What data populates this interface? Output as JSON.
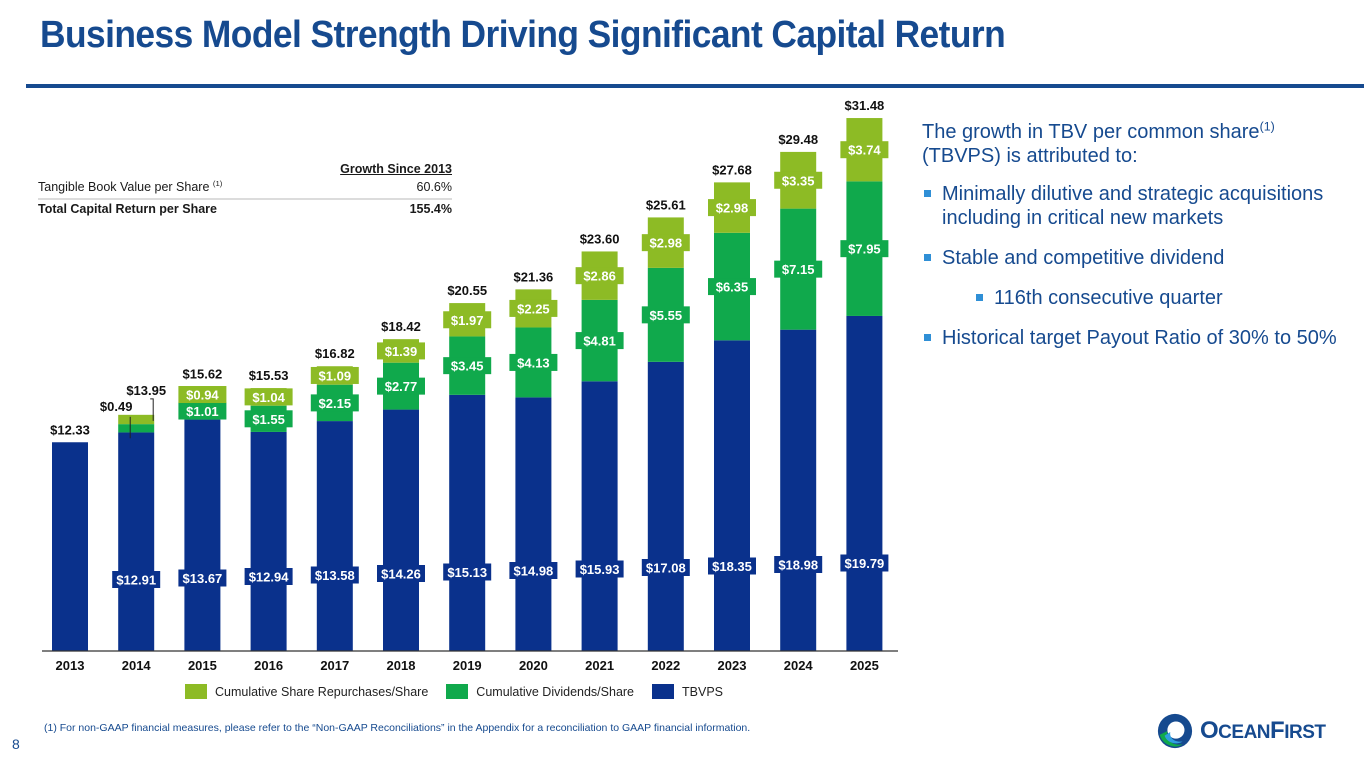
{
  "page": {
    "title": "Business Model Strength Driving Significant Capital Return",
    "page_number": "8",
    "footnote": "(1)  For non-GAAP financial measures, please refer to the “Non-GAAP Reconciliations” in the Appendix for a reconciliation to GAAP financial information.",
    "logo": {
      "name": "OceanFirst",
      "big_o": "O",
      "part1": "CEAN",
      "big_f": "F",
      "part2": "IRST"
    }
  },
  "colors": {
    "title": "#164a8f",
    "tbvps": "#0a318c",
    "dividends": "#10a94c",
    "repurchases": "#8dbb25",
    "bullet": "#2f8fd6"
  },
  "growth_table": {
    "header": "Growth Since 2013",
    "rows": [
      {
        "label": "Tangible Book Value per Share",
        "sup": "(1)",
        "value": "60.6%"
      },
      {
        "label": "Total Capital Return per Share",
        "sup": "",
        "value": "155.4%"
      }
    ]
  },
  "side_panel": {
    "intro": "The growth in TBV per common share",
    "intro_sup": "(1)",
    "intro_cont": " (TBVPS) is attributed to:",
    "bullets": [
      {
        "text": "Minimally dilutive and strategic acquisitions including in critical new markets",
        "level": 1
      },
      {
        "text": "Stable and competitive dividend",
        "level": 1
      },
      {
        "text": "116th consecutive quarter",
        "level": 2
      },
      {
        "text": "Historical target Payout Ratio of 30% to 50%",
        "level": 1
      }
    ]
  },
  "chart_data": {
    "type": "bar",
    "stacked": true,
    "title": "",
    "xlabel": "",
    "ylabel": "",
    "ylim": [
      0,
      32
    ],
    "grid": false,
    "legend_position": "bottom-center",
    "categories": [
      "2013",
      "2014",
      "2015",
      "2016",
      "2017",
      "2018",
      "2019",
      "2020",
      "2021",
      "2022",
      "2023",
      "2024",
      "2025"
    ],
    "series": [
      {
        "name": "TBVPS",
        "color": "#0a318c",
        "values": [
          12.33,
          12.91,
          13.67,
          12.94,
          13.58,
          14.26,
          15.13,
          14.98,
          15.93,
          17.08,
          18.35,
          18.98,
          19.79
        ],
        "labels": [
          "",
          "$12.91",
          "$13.67",
          "$12.94",
          "$13.58",
          "$14.26",
          "$15.13",
          "$14.98",
          "$15.93",
          "$17.08",
          "$18.35",
          "$18.98",
          "$19.79"
        ]
      },
      {
        "name": "Cumulative Dividends/Share",
        "color": "#10a94c",
        "values": [
          0,
          0.49,
          1.01,
          1.55,
          2.15,
          2.77,
          3.45,
          4.13,
          4.81,
          5.55,
          6.35,
          7.15,
          7.95
        ],
        "labels": [
          "",
          "$0.49",
          "$1.01",
          "$1.55",
          "$2.15",
          "$2.77",
          "$3.45",
          "$4.13",
          "$4.81",
          "$5.55",
          "$6.35",
          "$7.15",
          "$7.95"
        ]
      },
      {
        "name": "Cumulative Share Repurchases/Share",
        "color": "#8dbb25",
        "values": [
          0,
          0.55,
          0.94,
          1.04,
          1.09,
          1.39,
          1.97,
          2.25,
          2.86,
          2.98,
          2.98,
          3.35,
          3.74
        ],
        "labels": [
          "",
          "",
          "$0.94",
          "$1.04",
          "$1.09",
          "$1.39",
          "$1.97",
          "$2.25",
          "$2.86",
          "$2.98",
          "$2.98",
          "$3.35",
          "$3.74"
        ]
      }
    ],
    "totals": [
      "$12.33",
      "$13.95",
      "$15.62",
      "$15.53",
      "$16.82",
      "$18.42",
      "$20.55",
      "$21.36",
      "$23.60",
      "$25.61",
      "$27.68",
      "$29.48",
      "$31.48"
    ],
    "legend": [
      {
        "label": "Cumulative Share Repurchases/Share",
        "color": "#8dbb25"
      },
      {
        "label": "Cumulative Dividends/Share",
        "color": "#10a94c"
      },
      {
        "label": "TBVPS",
        "color": "#0a318c"
      }
    ]
  }
}
